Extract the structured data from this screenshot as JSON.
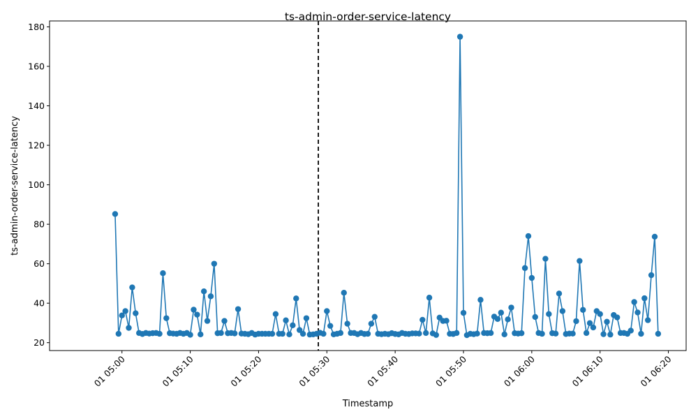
{
  "chart_data": {
    "type": "line",
    "title": "ts-admin-order-service-latency",
    "xlabel": "Timestamp",
    "ylabel": "ts-admin-order-service-latency",
    "x_start": "2023-01-01 04:59:00",
    "x_interval_seconds": 30,
    "xlim": [
      "2023-01-01 04:49:24",
      "2023-01-01 06:22:36"
    ],
    "ylim": [
      16,
      183
    ],
    "x_ticks": [
      "01 05:00",
      "01 05:10",
      "01 05:20",
      "01 05:30",
      "01 05:40",
      "01 05:50",
      "01 06:00",
      "01 06:10",
      "01 06:20"
    ],
    "y_ticks": [
      20,
      40,
      60,
      80,
      100,
      120,
      140,
      160,
      180
    ],
    "marker_line_x": "2023-01-01 05:28:45",
    "color": "#1f77b4",
    "grid": false,
    "series": [
      {
        "name": "",
        "values": [
          85.2,
          24.5,
          33.8,
          36.0,
          27.5,
          48.0,
          34.9,
          24.9,
          24.4,
          24.9,
          24.6,
          24.8,
          24.9,
          24.5,
          55.2,
          32.4,
          24.8,
          24.6,
          24.5,
          24.9,
          24.5,
          24.9,
          24.0,
          36.7,
          34.2,
          24.2,
          46.0,
          31.0,
          43.5,
          60.0,
          24.8,
          24.9,
          31.0,
          24.8,
          24.9,
          24.7,
          37.0,
          24.6,
          24.5,
          24.3,
          24.9,
          24.1,
          24.5,
          24.5,
          24.5,
          24.5,
          24.5,
          34.5,
          24.5,
          24.5,
          31.3,
          24.2,
          28.8,
          42.4,
          26.4,
          24.5,
          32.4,
          24.1,
          24.2,
          24.5,
          25.0,
          24.5,
          36.0,
          28.5,
          24.2,
          24.5,
          24.9,
          45.3,
          29.6,
          24.9,
          24.9,
          24.3,
          24.9,
          24.4,
          24.5,
          29.6,
          33.1,
          24.5,
          24.3,
          24.5,
          24.3,
          24.8,
          24.4,
          24.2,
          24.9,
          24.5,
          24.4,
          24.7,
          24.7,
          24.6,
          31.6,
          24.9,
          42.8,
          24.7,
          23.9,
          32.7,
          31.0,
          31.1,
          24.5,
          24.4,
          24.9,
          175.0,
          35.1,
          23.8,
          24.5,
          24.3,
          24.6,
          41.7,
          24.9,
          24.8,
          24.9,
          33.2,
          32.0,
          35.2,
          24.2,
          31.8,
          37.8,
          24.8,
          24.6,
          24.8,
          57.8,
          74.0,
          52.8,
          33.0,
          24.9,
          24.5,
          62.5,
          34.5,
          24.8,
          24.6,
          44.9,
          36.0,
          24.4,
          24.6,
          24.6,
          30.9,
          61.4,
          36.6,
          24.9,
          29.9,
          27.7,
          36.0,
          34.5,
          24.3,
          30.6,
          24.1,
          34.0,
          32.8,
          24.9,
          24.9,
          24.5,
          26.1,
          40.6,
          35.3,
          24.5,
          42.5,
          31.4,
          54.2,
          73.7,
          24.5
        ]
      }
    ]
  }
}
